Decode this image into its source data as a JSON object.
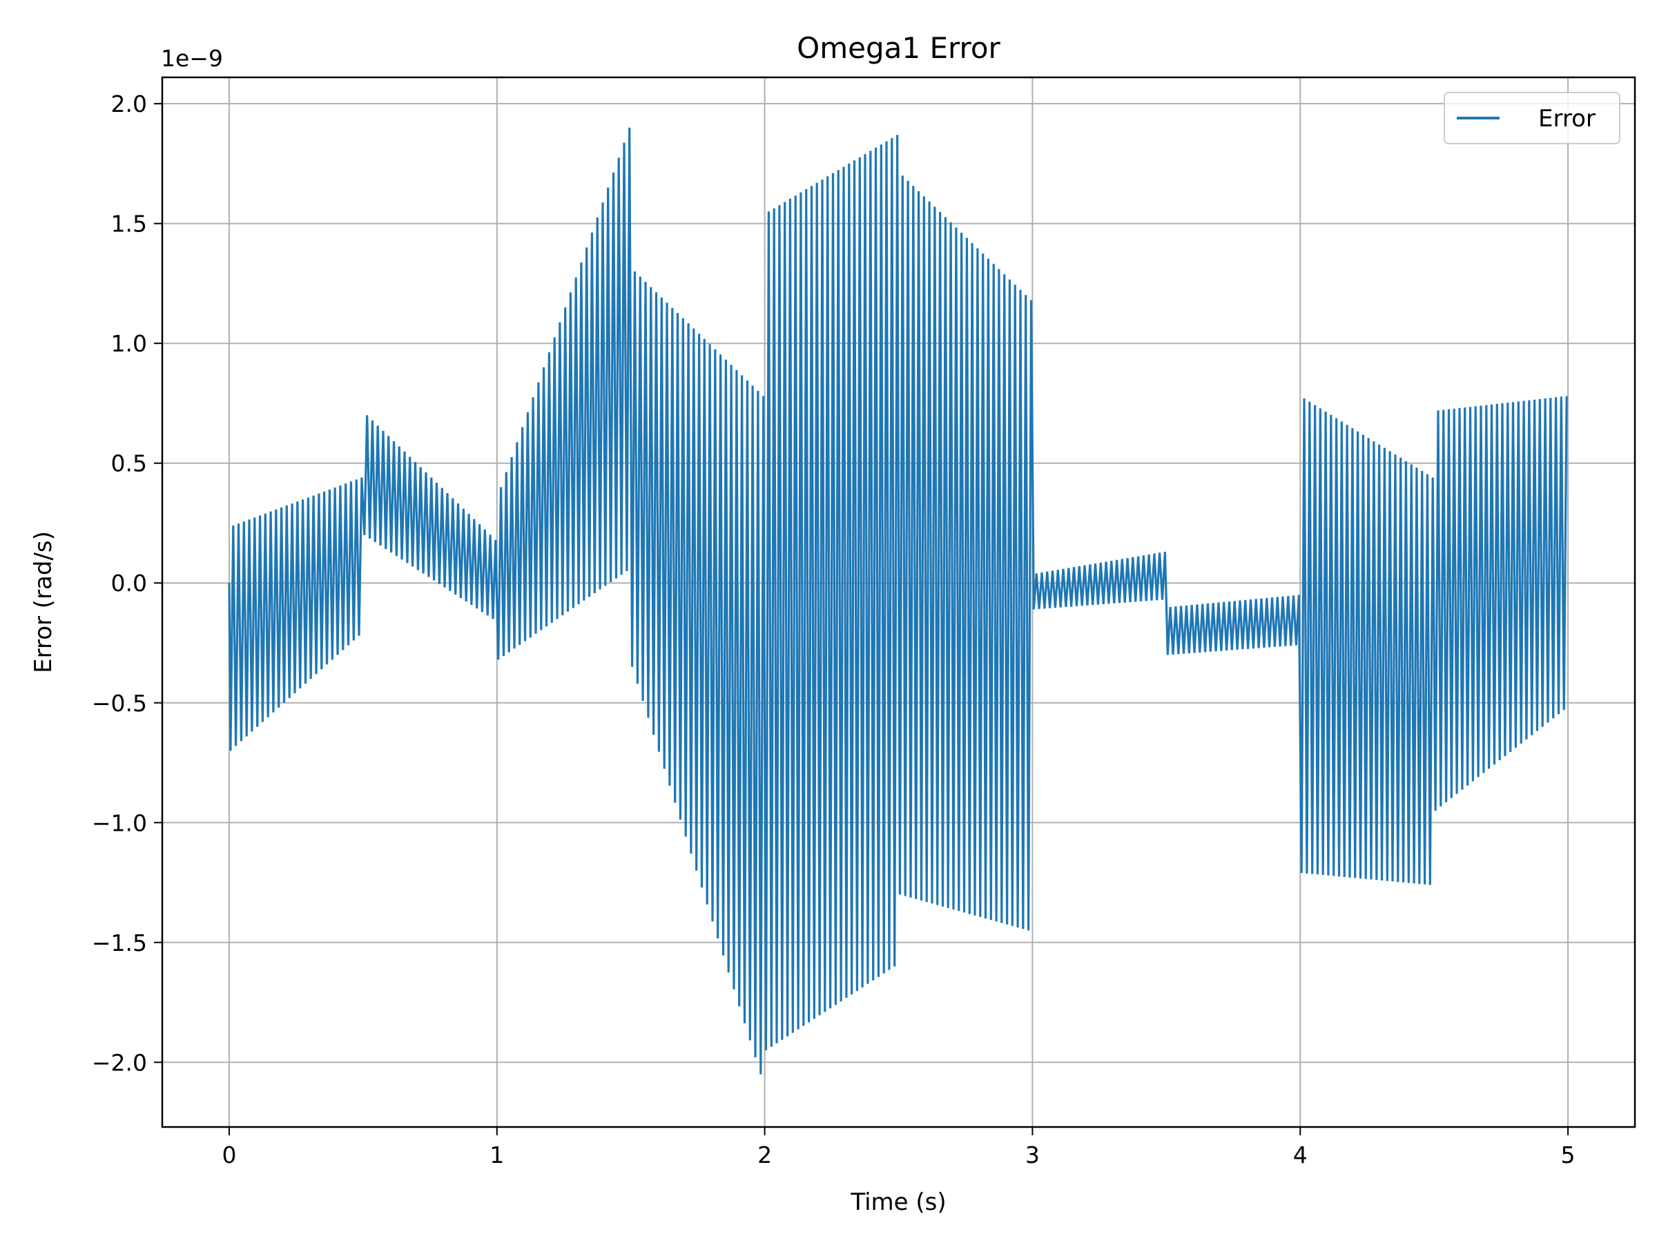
{
  "chart_data": {
    "type": "line",
    "title": "Omega1 Error",
    "xlabel": "Time (s)",
    "ylabel": "Error (rad/s)",
    "y_offset_label": "1e−9",
    "xlim": [
      -0.25,
      5.25
    ],
    "ylim": [
      -2.27,
      2.11
    ],
    "y_scale_factor": 1e-09,
    "xticks": [
      0,
      1,
      2,
      3,
      4,
      5
    ],
    "xtick_labels": [
      "0",
      "1",
      "2",
      "3",
      "4",
      "5"
    ],
    "yticks": [
      -2.0,
      -1.5,
      -1.0,
      -0.5,
      0.0,
      0.5,
      1.0,
      1.5,
      2.0
    ],
    "ytick_labels": [
      "−2.0",
      "−1.5",
      "−1.0",
      "−0.5",
      "0.0",
      "0.5",
      "1.0",
      "1.5",
      "2.0"
    ],
    "grid": true,
    "legend": {
      "position": "top-right",
      "entries": [
        "Error"
      ]
    },
    "series": [
      {
        "name": "Error",
        "color": "#1f77b4",
        "oscillation_period_s": 0.02,
        "segments": [
          {
            "t_start": 0.0,
            "t_end": 0.5,
            "upper_start": 0.24,
            "upper_end": 0.44,
            "lower_start": -0.7,
            "lower_end": -0.22
          },
          {
            "t_start": 0.5,
            "t_end": 1.0,
            "upper_start": 0.7,
            "upper_end": 0.18,
            "lower_start": 0.2,
            "lower_end": -0.15
          },
          {
            "t_start": 1.0,
            "t_end": 1.5,
            "upper_start": 0.4,
            "upper_end": 1.9,
            "lower_start": -0.32,
            "lower_end": 0.05
          },
          {
            "t_start": 1.5,
            "t_end": 2.0,
            "upper_start": 1.3,
            "upper_end": 0.78,
            "lower_start": -0.35,
            "lower_end": -2.05
          },
          {
            "t_start": 2.0,
            "t_end": 2.5,
            "upper_start": 1.55,
            "upper_end": 1.87,
            "lower_start": -1.95,
            "lower_end": -1.6
          },
          {
            "t_start": 2.5,
            "t_end": 3.0,
            "upper_start": 1.7,
            "upper_end": 1.18,
            "lower_start": -1.3,
            "lower_end": -1.45
          },
          {
            "t_start": 3.0,
            "t_end": 3.5,
            "upper_start": 0.04,
            "upper_end": 0.13,
            "lower_start": -0.11,
            "lower_end": -0.07
          },
          {
            "t_start": 3.5,
            "t_end": 4.0,
            "upper_start": -0.1,
            "upper_end": -0.05,
            "lower_start": -0.3,
            "lower_end": -0.26
          },
          {
            "t_start": 4.0,
            "t_end": 4.5,
            "upper_start": 0.77,
            "upper_end": 0.44,
            "lower_start": -1.21,
            "lower_end": -1.26
          },
          {
            "t_start": 4.5,
            "t_end": 5.0,
            "upper_start": 0.72,
            "upper_end": 0.78,
            "lower_start": -0.95,
            "lower_end": -0.53
          }
        ]
      }
    ]
  }
}
